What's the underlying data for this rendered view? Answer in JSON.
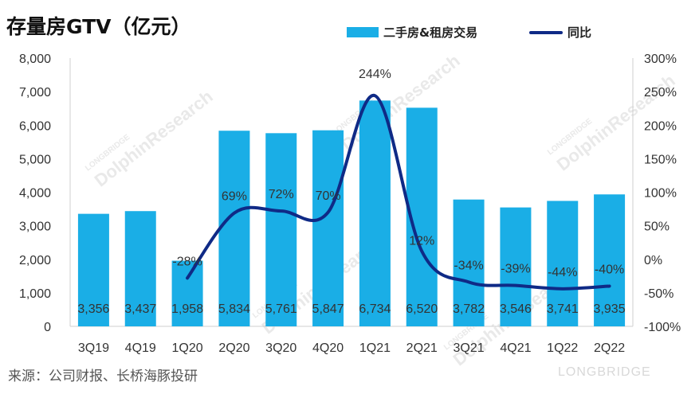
{
  "title": "存量房GTV（亿元）",
  "source": "来源：公司财报、长桥海豚投研",
  "brand": "LONGBRIDGE",
  "watermark": {
    "line1": "LONGBRIDGE",
    "line2": "DolphinResearch"
  },
  "colors": {
    "bar": "#1aaee6",
    "line": "#0f2a86",
    "axis": "#cfcfcf"
  },
  "chart_data": {
    "type": "bar",
    "categories": [
      "3Q19",
      "4Q19",
      "1Q20",
      "2Q20",
      "3Q20",
      "4Q20",
      "1Q21",
      "2Q21",
      "3Q21",
      "4Q21",
      "1Q22",
      "2Q22"
    ],
    "series": [
      {
        "name": "二手房&租房交易",
        "axis": "left",
        "type": "bar",
        "values": [
          3356,
          3437,
          1958,
          5834,
          5761,
          5847,
          6734,
          6520,
          3782,
          3546,
          3741,
          3935
        ],
        "labels": [
          "3,356",
          "3,437",
          "1,958",
          "5,834",
          "5,761",
          "5,847",
          "6,734",
          "6,520",
          "3,782",
          "3,546",
          "3,741",
          "3,935"
        ]
      },
      {
        "name": "同比",
        "axis": "right",
        "type": "line",
        "values": [
          null,
          null,
          -28,
          69,
          72,
          70,
          244,
          12,
          -34,
          -39,
          -44,
          -40
        ],
        "labels": [
          "",
          "",
          "-28%",
          "69%",
          "72%",
          "70%",
          "244%",
          "12%",
          "-34%",
          "-39%",
          "-44%",
          "-40%"
        ]
      }
    ],
    "y_left": {
      "lim": [
        0,
        8000
      ],
      "ticks": [
        "0",
        "1,000",
        "2,000",
        "3,000",
        "4,000",
        "5,000",
        "6,000",
        "7,000",
        "8,000"
      ]
    },
    "y_right": {
      "lim": [
        -100,
        300
      ],
      "ticks": [
        "-100%",
        "-50%",
        "0%",
        "50%",
        "100%",
        "150%",
        "200%",
        "250%",
        "300%"
      ]
    },
    "grid": false,
    "legend": "top-right"
  }
}
